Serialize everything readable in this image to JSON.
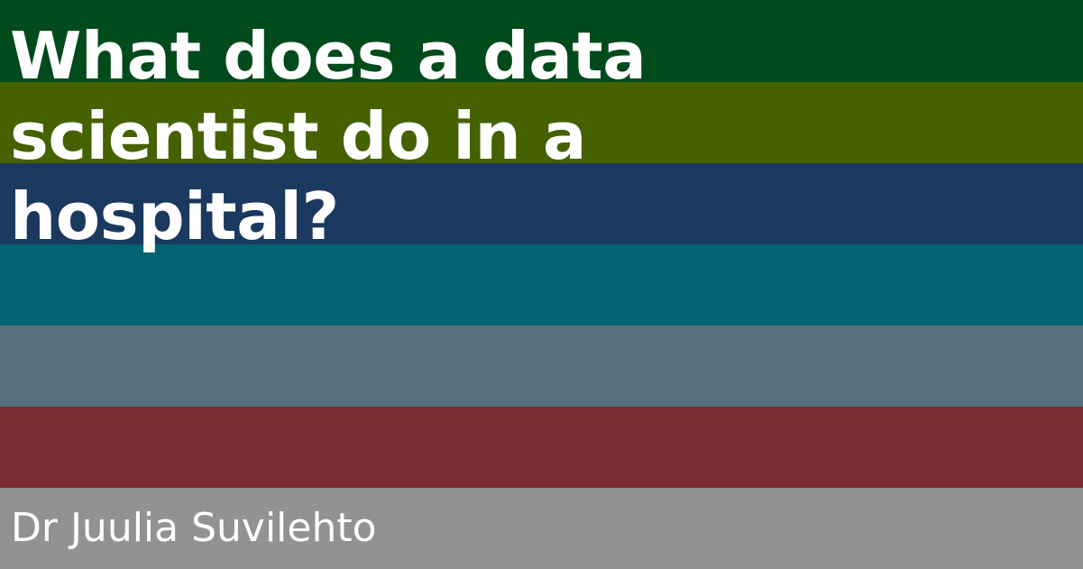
{
  "title_lines": [
    "What does a data",
    "scientist do in a",
    "hospital?"
  ],
  "author": "Dr Juulia Suvilehto",
  "stripes": [
    {
      "color": "#014a1b"
    },
    {
      "color": "#456100"
    },
    {
      "color": "#1b385e"
    },
    {
      "color": "#006471"
    },
    {
      "color": "#55707b"
    },
    {
      "color": "#7b2a2f"
    },
    {
      "color": "#929292"
    }
  ]
}
